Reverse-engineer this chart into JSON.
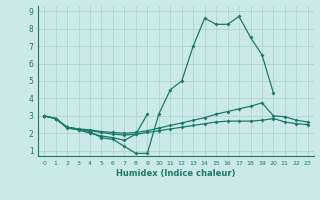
{
  "xlabel": "Humidex (Indice chaleur)",
  "xlim": [
    -0.5,
    23.5
  ],
  "ylim": [
    0.7,
    9.3
  ],
  "yticks": [
    1,
    2,
    3,
    4,
    5,
    6,
    7,
    8,
    9
  ],
  "xticks": [
    0,
    1,
    2,
    3,
    4,
    5,
    6,
    7,
    8,
    9,
    10,
    11,
    12,
    13,
    14,
    15,
    16,
    17,
    18,
    19,
    20,
    21,
    22,
    23
  ],
  "bg_color": "#cce9e9",
  "grid_color": "#add4d4",
  "line_color": "#1a7a6a",
  "lines": [
    {
      "x": [
        0,
        1,
        2,
        3,
        4,
        5,
        6,
        7,
        8,
        9,
        10,
        11,
        12,
        13,
        14,
        15,
        16,
        17,
        18,
        19,
        20
      ],
      "y": [
        3.0,
        2.85,
        2.35,
        2.25,
        2.1,
        1.75,
        1.65,
        1.25,
        0.85,
        0.85,
        3.1,
        4.5,
        5.0,
        7.0,
        8.6,
        8.25,
        8.25,
        8.7,
        7.5,
        6.5,
        4.3
      ]
    },
    {
      "x": [
        0,
        1,
        2,
        3,
        4,
        5,
        6,
        7,
        8,
        9
      ],
      "y": [
        3.0,
        2.85,
        2.35,
        2.2,
        2.0,
        1.85,
        1.75,
        1.6,
        1.95,
        3.1
      ]
    },
    {
      "x": [
        0,
        1,
        2,
        3,
        4,
        5,
        6,
        7,
        8,
        9,
        10,
        11,
        12,
        13,
        14,
        15,
        16,
        17,
        18,
        19,
        20,
        21,
        22,
        23
      ],
      "y": [
        3.0,
        2.85,
        2.35,
        2.25,
        2.2,
        2.1,
        2.05,
        2.0,
        2.05,
        2.15,
        2.3,
        2.45,
        2.6,
        2.75,
        2.9,
        3.1,
        3.25,
        3.4,
        3.55,
        3.75,
        3.0,
        2.95,
        2.75,
        2.65
      ]
    },
    {
      "x": [
        0,
        1,
        2,
        3,
        4,
        5,
        6,
        7,
        8,
        9,
        10,
        11,
        12,
        13,
        14,
        15,
        16,
        17,
        18,
        19,
        20,
        21,
        22,
        23
      ],
      "y": [
        3.0,
        2.85,
        2.3,
        2.2,
        2.15,
        2.05,
        1.95,
        1.9,
        1.95,
        2.05,
        2.15,
        2.25,
        2.35,
        2.45,
        2.55,
        2.65,
        2.7,
        2.7,
        2.7,
        2.75,
        2.85,
        2.65,
        2.55,
        2.5
      ]
    }
  ]
}
